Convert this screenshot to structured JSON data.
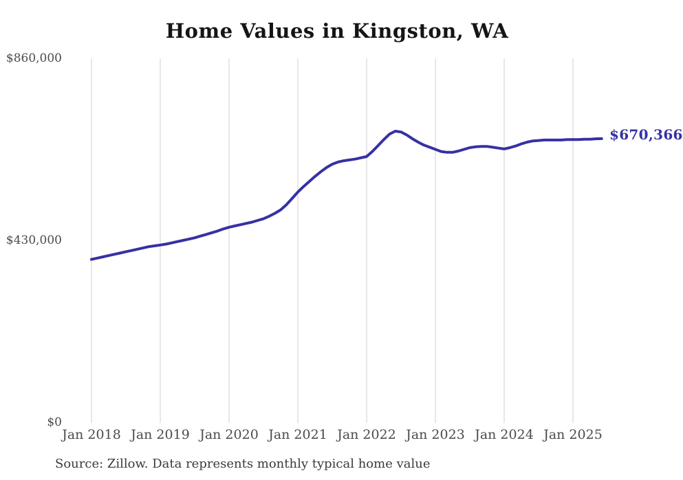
{
  "chart_data": {
    "type": "line",
    "title": "Home Values in Kingston, WA",
    "series_name": "Monthly typical home value",
    "x_start": "Jan 2018",
    "x_end": "Jun 2025",
    "x_frequency": "monthly",
    "values": [
      385000,
      388000,
      391000,
      394000,
      397000,
      400000,
      403000,
      406000,
      409000,
      412000,
      415000,
      417000,
      419000,
      421000,
      424000,
      427000,
      430000,
      433000,
      436000,
      440000,
      444000,
      448000,
      452000,
      457000,
      461000,
      464000,
      467000,
      470000,
      473000,
      477000,
      481000,
      487000,
      494000,
      502000,
      514000,
      529000,
      544000,
      557000,
      569000,
      581000,
      592000,
      602000,
      610000,
      615000,
      618000,
      620000,
      622000,
      625000,
      628000,
      640000,
      654000,
      668000,
      681000,
      688000,
      686000,
      679000,
      670000,
      662000,
      655000,
      650000,
      645000,
      640000,
      638000,
      638000,
      641000,
      645000,
      649000,
      651000,
      652000,
      652000,
      650000,
      648000,
      646000,
      649000,
      653000,
      658000,
      662000,
      665000,
      666000,
      667000,
      667000,
      667000,
      667000,
      668000,
      668000,
      668000,
      669000,
      669000,
      670000,
      670366
    ],
    "final_value": 670366,
    "end_label": "$670,366",
    "x_tick_labels": [
      "Jan 2018",
      "Jan 2019",
      "Jan 2020",
      "Jan 2021",
      "Jan 2022",
      "Jan 2023",
      "Jan 2024",
      "Jan 2025"
    ],
    "y_tick_labels": [
      "$860,000",
      "$430,000",
      "$0"
    ],
    "ylim": [
      0,
      860000
    ],
    "grid": "vertical-only",
    "legend": "none",
    "line_color": "#3531a3",
    "gridline_color": "#cfcfcf",
    "axis_text_color": "#4a4a4a",
    "source_note": "Source: Zillow. Data represents monthly typical home value"
  }
}
